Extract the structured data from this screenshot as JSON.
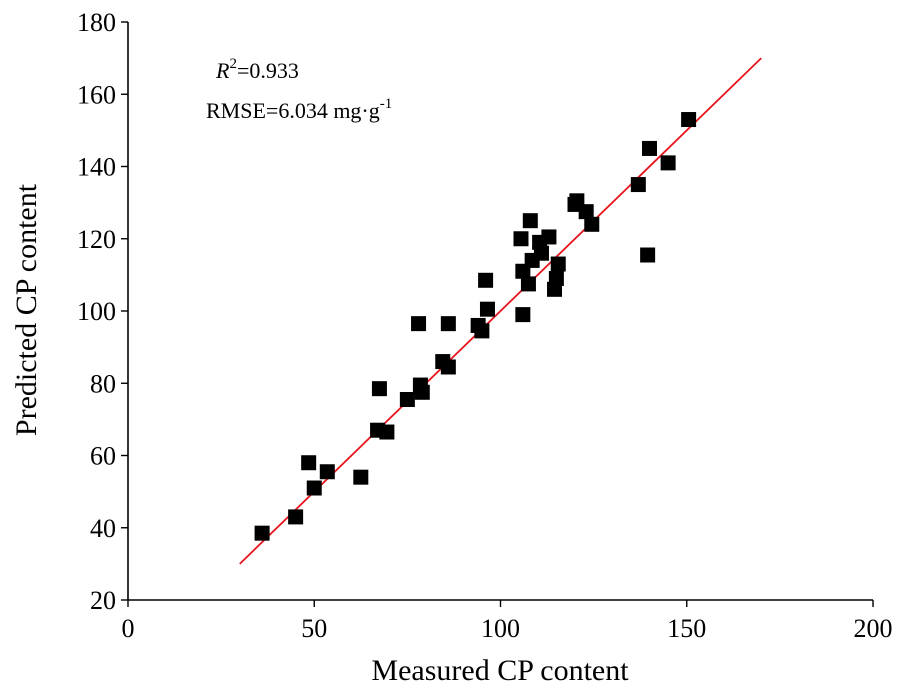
{
  "chart_data": {
    "type": "scatter",
    "title": "",
    "xlabel": "Measured CP content",
    "ylabel": "Predicted CP content",
    "xlim": [
      0,
      200
    ],
    "ylim": [
      20,
      180
    ],
    "xticks": [
      0,
      50,
      100,
      150,
      200
    ],
    "yticks": [
      20,
      40,
      60,
      80,
      100,
      120,
      140,
      160,
      180
    ],
    "grid": false,
    "legend": "none",
    "annotations": {
      "r2_symbol": "R",
      "r2_exp": "2",
      "r2_value": "=0.933",
      "rmse_text": "RMSE=6.034 mg·g",
      "rmse_exp": "-1"
    },
    "series": [
      {
        "type": "scatter",
        "marker": "square",
        "color": "#000000",
        "points": [
          [
            36,
            38.5
          ],
          [
            45,
            43
          ],
          [
            48.5,
            58
          ],
          [
            50,
            51
          ],
          [
            53.5,
            55.5
          ],
          [
            62.5,
            54
          ],
          [
            67,
            67
          ],
          [
            67.5,
            78.5
          ],
          [
            69.5,
            66.5
          ],
          [
            75,
            75.5
          ],
          [
            78,
            96.5
          ],
          [
            78.5,
            79.5
          ],
          [
            79,
            77.5
          ],
          [
            84.5,
            86
          ],
          [
            86,
            96.5
          ],
          [
            86,
            84.5
          ],
          [
            94,
            96
          ],
          [
            95,
            94.5
          ],
          [
            96,
            108.5
          ],
          [
            96.5,
            100.5
          ],
          [
            105.5,
            120
          ],
          [
            106,
            111
          ],
          [
            106,
            99
          ],
          [
            107.5,
            107.5
          ],
          [
            108,
            125
          ],
          [
            108.5,
            114
          ],
          [
            110.5,
            119
          ],
          [
            111,
            116
          ],
          [
            113,
            120.5
          ],
          [
            114.5,
            106
          ],
          [
            115,
            109
          ],
          [
            115.5,
            113
          ],
          [
            120,
            129.5
          ],
          [
            120.5,
            130.5
          ],
          [
            123,
            127.5
          ],
          [
            124.5,
            124
          ],
          [
            137,
            135
          ],
          [
            139.5,
            115.5
          ],
          [
            140,
            145
          ],
          [
            145,
            141
          ],
          [
            150.5,
            153
          ]
        ]
      },
      {
        "type": "line",
        "color": "#e8141c",
        "points": [
          [
            30,
            30
          ],
          [
            170,
            170
          ]
        ]
      }
    ]
  }
}
